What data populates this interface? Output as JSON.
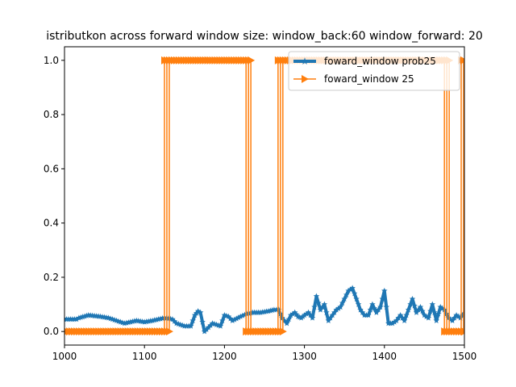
{
  "chart_data": {
    "type": "line",
    "title": "istributkon across forward window size: window_back:60 window_forward: 20",
    "xlabel": "",
    "ylabel": "",
    "xlim": [
      1000,
      1500
    ],
    "ylim": [
      -0.05,
      1.05
    ],
    "xticks": [
      "1000",
      "1100",
      "1200",
      "1300",
      "1400",
      "1500"
    ],
    "yticks": [
      "0.0",
      "0.2",
      "0.4",
      "0.6",
      "0.8",
      "1.0"
    ],
    "grid": false,
    "legend_position": "top-right",
    "series": [
      {
        "name": "foward_window prob25",
        "color": "#1f77b4",
        "marker": "star",
        "x": [
          1000,
          1015,
          1018,
          1030,
          1045,
          1055,
          1065,
          1075,
          1090,
          1100,
          1110,
          1125,
          1135,
          1140,
          1150,
          1158,
          1163,
          1167,
          1170,
          1175,
          1185,
          1195,
          1200,
          1205,
          1210,
          1220,
          1228,
          1235,
          1245,
          1255,
          1262,
          1268,
          1272,
          1278,
          1283,
          1288,
          1292,
          1296,
          1300,
          1305,
          1310,
          1315,
          1320,
          1325,
          1330,
          1335,
          1340,
          1345,
          1350,
          1355,
          1360,
          1365,
          1370,
          1375,
          1380,
          1385,
          1390,
          1395,
          1400,
          1405,
          1410,
          1415,
          1420,
          1425,
          1430,
          1435,
          1440,
          1445,
          1450,
          1455,
          1460,
          1465,
          1470,
          1475,
          1480,
          1485,
          1490,
          1495,
          1500
        ],
        "values": [
          0.045,
          0.045,
          0.05,
          0.06,
          0.055,
          0.05,
          0.04,
          0.03,
          0.04,
          0.035,
          0.04,
          0.05,
          0.045,
          0.03,
          0.02,
          0.02,
          0.06,
          0.075,
          0.07,
          0.0,
          0.03,
          0.02,
          0.06,
          0.055,
          0.04,
          0.055,
          0.065,
          0.07,
          0.07,
          0.075,
          0.08,
          0.08,
          0.05,
          0.03,
          0.06,
          0.07,
          0.055,
          0.05,
          0.06,
          0.07,
          0.05,
          0.13,
          0.08,
          0.1,
          0.04,
          0.06,
          0.08,
          0.09,
          0.12,
          0.15,
          0.16,
          0.12,
          0.08,
          0.06,
          0.06,
          0.1,
          0.07,
          0.09,
          0.15,
          0.03,
          0.03,
          0.04,
          0.06,
          0.04,
          0.08,
          0.12,
          0.07,
          0.09,
          0.06,
          0.05,
          0.1,
          0.04,
          0.09,
          0.08,
          0.05,
          0.04,
          0.06,
          0.05,
          0.07
        ]
      },
      {
        "name": "foward_window 25",
        "color": "#ff7f0e",
        "marker": "triangle-right",
        "x": [
          1000,
          1125,
          1125,
          1128,
          1128,
          1131,
          1131,
          1227,
          1227,
          1230,
          1230,
          1233,
          1233,
          1267,
          1267,
          1270,
          1270,
          1273,
          1273,
          1475,
          1475,
          1478,
          1478,
          1481,
          1481,
          1496,
          1496,
          1499,
          1499,
          1500
        ],
        "values": [
          0,
          0,
          1,
          1,
          0,
          0,
          1,
          1,
          0,
          0,
          1,
          1,
          0,
          0,
          1,
          1,
          0,
          0,
          1,
          1,
          0,
          0,
          1,
          1,
          0,
          0,
          1,
          1,
          0,
          0
        ]
      }
    ]
  }
}
